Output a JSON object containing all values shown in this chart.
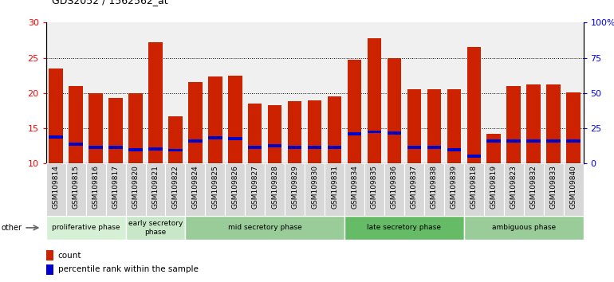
{
  "title": "GDS2052 / 1562562_at",
  "samples": [
    "GSM109814",
    "GSM109815",
    "GSM109816",
    "GSM109817",
    "GSM109820",
    "GSM109821",
    "GSM109822",
    "GSM109824",
    "GSM109825",
    "GSM109826",
    "GSM109827",
    "GSM109828",
    "GSM109829",
    "GSM109830",
    "GSM109831",
    "GSM109834",
    "GSM109835",
    "GSM109836",
    "GSM109837",
    "GSM109838",
    "GSM109839",
    "GSM109818",
    "GSM109819",
    "GSM109823",
    "GSM109832",
    "GSM109833",
    "GSM109840"
  ],
  "count_values": [
    23.5,
    21.0,
    20.0,
    19.3,
    20.0,
    27.2,
    16.7,
    21.6,
    22.3,
    22.5,
    18.5,
    18.3,
    18.8,
    19.0,
    19.5,
    24.7,
    27.8,
    25.0,
    20.5,
    20.6,
    20.5,
    26.5,
    14.2,
    21.0,
    21.2,
    21.2,
    20.1
  ],
  "percentile_values": [
    13.8,
    12.8,
    12.3,
    12.3,
    12.0,
    12.1,
    11.9,
    13.2,
    13.7,
    13.5,
    12.3,
    12.5,
    12.3,
    12.3,
    12.3,
    14.2,
    14.5,
    14.3,
    12.3,
    12.3,
    12.0,
    11.0,
    13.2,
    13.2,
    13.2,
    13.2,
    13.2
  ],
  "phases": [
    {
      "label": "proliferative phase",
      "start": 0,
      "end": 4
    },
    {
      "label": "early secretory\nphase",
      "start": 4,
      "end": 7
    },
    {
      "label": "mid secretory phase",
      "start": 7,
      "end": 15
    },
    {
      "label": "late secretory phase",
      "start": 15,
      "end": 21
    },
    {
      "label": "ambiguous phase",
      "start": 21,
      "end": 27
    }
  ],
  "phase_colors": [
    "#d6f0d6",
    "#c8e6c8",
    "#99cc99",
    "#66bb66",
    "#99cc99"
  ],
  "bar_color_red": "#cc2200",
  "bar_color_blue": "#0000cc",
  "ylim_left": [
    10,
    30
  ],
  "ylim_right": [
    0,
    100
  ],
  "yticks_left": [
    10,
    15,
    20,
    25,
    30
  ],
  "yticks_right": [
    0,
    25,
    50,
    75,
    100
  ],
  "ytick_labels_right": [
    "0",
    "25",
    "50",
    "75",
    "100%"
  ],
  "tick_bg_color": "#d8d8d8",
  "plot_bg_color": "#f0f0f0",
  "other_label": "other",
  "legend_count": "count",
  "legend_percentile": "percentile rank within the sample"
}
